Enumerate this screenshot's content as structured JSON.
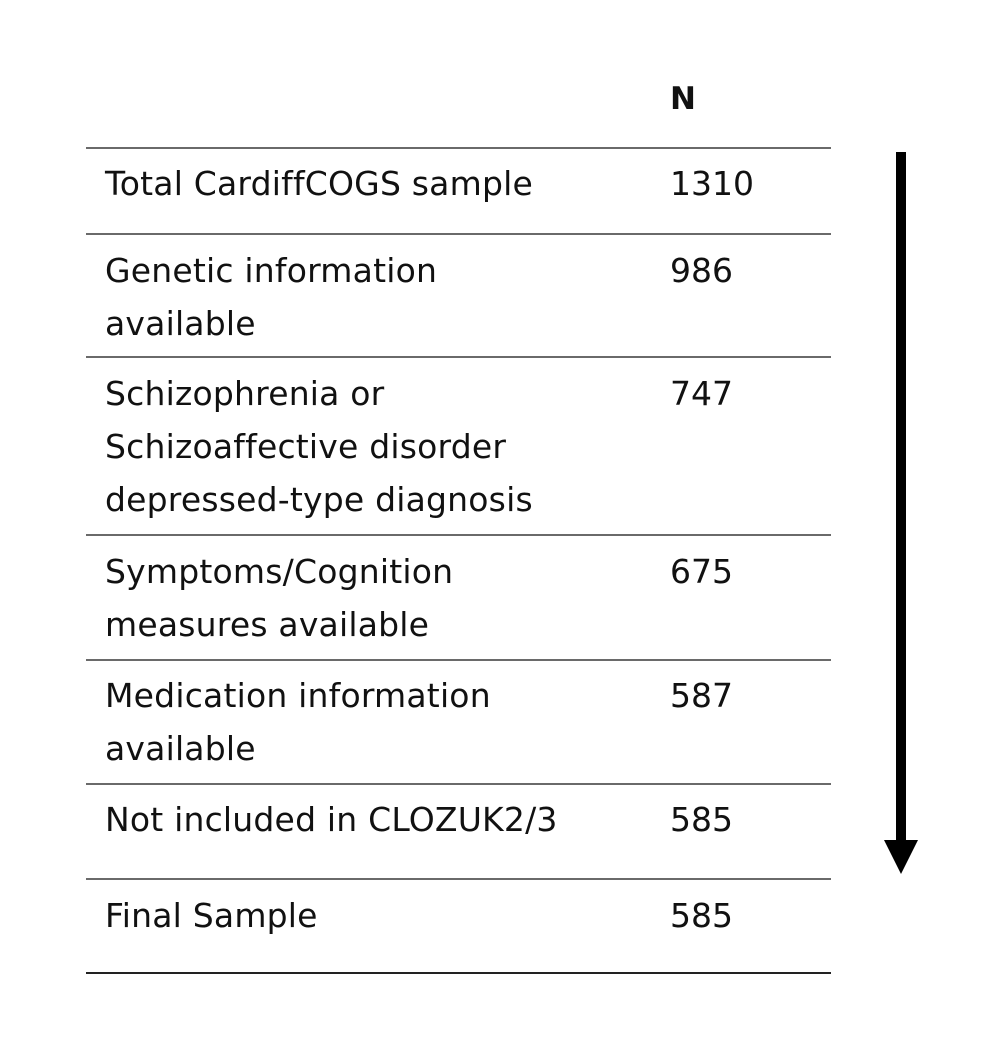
{
  "table": {
    "column_header_n": "N",
    "rows": [
      {
        "label": "Total CardiffCOGS sample",
        "n": "1310"
      },
      {
        "label": "Genetic information\navailable",
        "n": "986"
      },
      {
        "label": "Schizophrenia or\nSchizoaffective disorder\ndepressed-type diagnosis",
        "n": "747"
      },
      {
        "label": "Symptoms/Cognition\nmeasures available",
        "n": "675"
      },
      {
        "label": "Medication information\navailable",
        "n": "587"
      },
      {
        "label": "Not included in CLOZUK2/3",
        "n": "585"
      },
      {
        "label": "Final Sample",
        "n": "585"
      }
    ]
  },
  "arrow": {
    "icon": "down-arrow-icon",
    "color": "#000000"
  }
}
